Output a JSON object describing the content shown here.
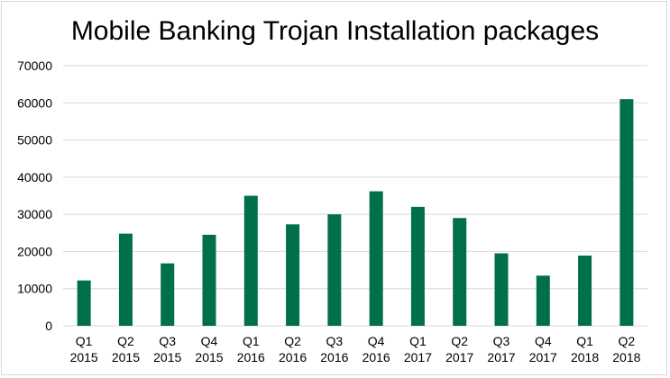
{
  "chart_data": {
    "type": "bar",
    "title": "Mobile Banking Trojan Installation packages",
    "xlabel": "",
    "ylabel": "",
    "ylim": [
      0,
      70000
    ],
    "yticks": [
      0,
      10000,
      20000,
      30000,
      40000,
      50000,
      60000,
      70000
    ],
    "grid": true,
    "legend": "none",
    "categories": [
      [
        "Q1",
        "2015"
      ],
      [
        "Q2",
        "2015"
      ],
      [
        "Q3",
        "2015"
      ],
      [
        "Q4",
        "2015"
      ],
      [
        "Q1",
        "2016"
      ],
      [
        "Q2",
        "2016"
      ],
      [
        "Q3",
        "2016"
      ],
      [
        "Q4",
        "2016"
      ],
      [
        "Q1",
        "2017"
      ],
      [
        "Q2",
        "2017"
      ],
      [
        "Q3",
        "2017"
      ],
      [
        "Q4",
        "2017"
      ],
      [
        "Q1",
        "2018"
      ],
      [
        "Q2",
        "2018"
      ]
    ],
    "values": [
      12200,
      24800,
      16800,
      24500,
      35000,
      27300,
      30000,
      36200,
      32000,
      29000,
      19500,
      13500,
      18900,
      61000
    ],
    "bar_color": "#00704a",
    "grid_color": "#d9d9d9"
  }
}
